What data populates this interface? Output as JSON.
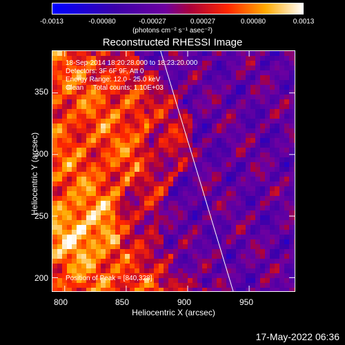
{
  "colorbar": {
    "ticks": [
      "-0.0013",
      "-0.00080",
      "-0.00027",
      "0.00027",
      "0.00080",
      "0.0013"
    ],
    "unit": "(photons cm⁻² s⁻¹ asec⁻²)",
    "range": [
      -0.0013,
      0.0013
    ]
  },
  "header": {
    "time_range": "18-Sep-2014 18:20:28.000 to 18:23:20.000",
    "detectors": "Detectors: 3F 6F 9F, Att 0",
    "energy_range": "Energy Range: 12.0 - 25.0 keV",
    "clean_counts": "Clean     Total counts: 1.10E+03",
    "peak": "Position of Peak = [840,328]"
  },
  "footer": {
    "datestamp": "17-May-2022 06:36"
  },
  "chart_data": {
    "type": "heatmap",
    "title": "Reconstructed RHESSI Image",
    "xlabel": "Heliocentric X (arcsec)",
    "ylabel": "Heliocentric Y (arcsec)",
    "xlim": [
      790,
      987
    ],
    "ylim": [
      189,
      384
    ],
    "xticks": [
      800,
      850,
      900,
      950
    ],
    "yticks": [
      200,
      250,
      300,
      350
    ],
    "colormap": "blue-purple-red-yellow-white",
    "peak_position": [
      840,
      328
    ],
    "limb": {
      "color": "#ffffff",
      "x": [
        878,
        937
      ],
      "y": [
        384,
        189
      ]
    },
    "colors": {
      "background": "#000000",
      "text": "#ffffff"
    }
  }
}
